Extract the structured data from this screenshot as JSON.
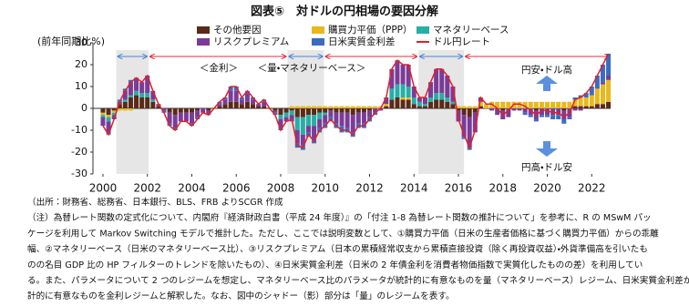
{
  "chart_data": {
    "type": "stacked-bar-line",
    "title": "図表⑤　対ドルの円相場の要因分解",
    "y_label": "(前年同期比%)",
    "xlim": [
      1999.55,
      2022.85
    ],
    "xticks": [
      2000,
      2002,
      2004,
      2006,
      2008,
      2010,
      2012,
      2014,
      2016,
      2018,
      2020,
      2022
    ],
    "ylim": [
      -30,
      30
    ],
    "yticks": [
      -30,
      -20,
      -10,
      0,
      10,
      20,
      30
    ],
    "shaded_periods": [
      [
        2000.6,
        2002.05
      ],
      [
        2008.3,
        2009.95
      ],
      [
        2014.2,
        2016.25
      ]
    ],
    "rate_periods": [
      [
        2002.05,
        2008.3
      ],
      [
        2009.95,
        2014.2
      ],
      [
        2016.25,
        2022.85
      ]
    ],
    "regime_labels": [
      "＜金利＞",
      "＜量・マネタリーベース＞"
    ],
    "direction_labels": [
      "円安・ドル高",
      "円高・ドル安"
    ],
    "x": [
      2000,
      2000.25,
      2000.5,
      2000.75,
      2001,
      2001.25,
      2001.5,
      2001.75,
      2002,
      2002.25,
      2002.5,
      2002.75,
      2003,
      2003.25,
      2003.5,
      2003.75,
      2004,
      2004.25,
      2004.5,
      2004.75,
      2005,
      2005.25,
      2005.5,
      2005.75,
      2006,
      2006.25,
      2006.5,
      2006.75,
      2007,
      2007.25,
      2007.5,
      2007.75,
      2008,
      2008.25,
      2008.5,
      2008.75,
      2009,
      2009.25,
      2009.5,
      2009.75,
      2010,
      2010.25,
      2010.5,
      2010.75,
      2011,
      2011.25,
      2011.5,
      2011.75,
      2012,
      2012.25,
      2012.5,
      2012.75,
      2013,
      2013.25,
      2013.5,
      2013.75,
      2014,
      2014.25,
      2014.5,
      2014.75,
      2015,
      2015.25,
      2015.5,
      2015.75,
      2016,
      2016.25,
      2016.5,
      2016.75,
      2017,
      2017.25,
      2017.5,
      2017.75,
      2018,
      2018.25,
      2018.5,
      2018.75,
      2019,
      2019.25,
      2019.5,
      2019.75,
      2020,
      2020.25,
      2020.5,
      2020.75,
      2021,
      2021.25,
      2021.5,
      2021.75,
      2022,
      2022.25,
      2022.5,
      2022.75
    ],
    "series": [
      {
        "name": "その他要因",
        "color": "#5a2a18",
        "values": [
          -2,
          -3,
          -1,
          2,
          3,
          5,
          6,
          5,
          5,
          3,
          1,
          0,
          -2,
          -3,
          -2,
          -2,
          -2,
          -1,
          0,
          -1,
          0,
          1,
          2,
          3,
          3,
          2,
          3,
          2,
          1,
          1,
          0,
          -1,
          -3,
          -2,
          -1,
          -4,
          -4,
          -3,
          -3,
          -2,
          -2,
          -1,
          -2,
          -2,
          -2,
          -3,
          -2,
          -2,
          -1,
          0,
          0,
          1,
          4,
          5,
          4,
          4,
          2,
          1,
          1,
          3,
          4,
          4,
          3,
          2,
          -1,
          -3,
          -4,
          -2,
          1,
          0,
          0,
          0,
          -1,
          0,
          0,
          0,
          0,
          0,
          -1,
          0,
          0,
          0,
          0,
          -1,
          0,
          1,
          1,
          1,
          1,
          2,
          2,
          3
        ]
      },
      {
        "name": "購買力平価（PPP）",
        "color": "#e9b81c",
        "values": [
          -1,
          -1,
          -1,
          -1,
          -1,
          -1,
          0,
          0,
          0,
          0,
          0,
          0,
          0,
          0,
          0,
          0,
          0,
          0,
          0,
          0,
          0,
          0,
          0,
          0,
          0,
          0,
          0,
          0,
          0,
          0,
          0,
          0,
          0,
          0,
          1,
          1,
          1,
          1,
          1,
          1,
          1,
          1,
          1,
          1,
          1,
          1,
          1,
          1,
          1,
          1,
          1,
          1,
          0,
          0,
          1,
          1,
          0,
          0,
          0,
          0,
          0,
          0,
          0,
          0,
          1,
          1,
          1,
          1,
          2,
          2,
          3,
          3,
          3,
          3,
          3,
          3,
          3,
          3,
          3,
          3,
          3,
          3,
          3,
          3,
          3,
          3,
          4,
          4,
          5,
          7,
          9,
          10
        ]
      },
      {
        "name": "マネタリーベース",
        "color": "#27aea6",
        "values": [
          -1,
          -2,
          -1,
          0,
          1,
          1,
          2,
          2,
          2,
          1,
          0,
          0,
          0,
          0,
          0,
          0,
          0,
          0,
          0,
          0,
          0,
          0,
          0,
          0,
          0,
          0,
          0,
          0,
          0,
          0,
          0,
          0,
          -2,
          -2,
          -2,
          -6,
          -8,
          -5,
          -5,
          -3,
          -1,
          0,
          0,
          0,
          0,
          0,
          0,
          0,
          0,
          0,
          0,
          0,
          5,
          6,
          6,
          5,
          3,
          2,
          1,
          2,
          3,
          3,
          2,
          1,
          0,
          0,
          0,
          0,
          0,
          0,
          0,
          0,
          0,
          0,
          0,
          0,
          0,
          0,
          0,
          0,
          0,
          0,
          0,
          0,
          0,
          0,
          0,
          0,
          0,
          0,
          0,
          0
        ]
      },
      {
        "name": "リスクプレミアム",
        "color": "#7a3c96",
        "values": [
          -4,
          -5,
          -2,
          1,
          4,
          6,
          6,
          5,
          8,
          4,
          1,
          -1,
          -5,
          -6,
          -4,
          -4,
          -5,
          -3,
          -2,
          -2,
          0,
          1,
          2,
          5,
          5,
          2,
          4,
          2,
          1,
          2,
          0,
          -1,
          -4,
          -2,
          -2,
          -6,
          -5,
          -3,
          -6,
          -4,
          -4,
          -3,
          -5,
          -6,
          -7,
          -8,
          -5,
          -5,
          -3,
          -2,
          -1,
          3,
          9,
          11,
          9,
          10,
          5,
          2,
          3,
          7,
          11,
          11,
          10,
          7,
          -5,
          -10,
          -14,
          -9,
          2,
          0,
          -1,
          -3,
          -4,
          -4,
          -1,
          -1,
          -2,
          -3,
          -4,
          -3,
          -3,
          -3,
          -3,
          -4,
          -4,
          -1,
          -1,
          0,
          0,
          0,
          1,
          2
        ]
      },
      {
        "name": "日米実質金利差",
        "color": "#3b6cc0",
        "values": [
          0,
          -1,
          0,
          1,
          1,
          1,
          0,
          0,
          0,
          0,
          0,
          -1,
          -1,
          -1,
          0,
          0,
          -1,
          -1,
          0,
          0,
          0,
          1,
          1,
          2,
          2,
          1,
          1,
          1,
          0,
          1,
          0,
          -1,
          -1,
          0,
          -1,
          -2,
          -2,
          -2,
          -2,
          -2,
          -2,
          -2,
          -2,
          -3,
          -2,
          -2,
          -2,
          -2,
          -2,
          -1,
          0,
          0,
          0,
          0,
          0,
          0,
          0,
          0,
          0,
          0,
          0,
          0,
          0,
          0,
          0,
          -1,
          -1,
          0,
          0,
          0,
          0,
          0,
          0,
          0,
          0,
          0,
          -1,
          -1,
          -1,
          -1,
          -1,
          -2,
          -2,
          -2,
          -1,
          1,
          1,
          2,
          4,
          6,
          8,
          10
        ]
      }
    ],
    "line": {
      "name": "ドル円レート",
      "color": "#e0202c",
      "values": [
        -8,
        -12,
        -5,
        3,
        8,
        12,
        14,
        12,
        15,
        8,
        2,
        -2,
        -8,
        -10,
        -6,
        -6,
        -8,
        -5,
        -2,
        -3,
        0,
        3,
        5,
        10,
        10,
        5,
        8,
        5,
        2,
        4,
        0,
        -3,
        -10,
        -6,
        -5,
        -17,
        -18,
        -12,
        -15,
        -10,
        -8,
        -5,
        -8,
        -10,
        -10,
        -12,
        -8,
        -8,
        -5,
        -2,
        0,
        5,
        18,
        22,
        20,
        20,
        10,
        5,
        5,
        12,
        18,
        18,
        15,
        10,
        -5,
        -12,
        -18,
        -10,
        5,
        2,
        2,
        0,
        -3,
        -1,
        2,
        2,
        1,
        -1,
        -3,
        -1,
        -1,
        -2,
        -2,
        -4,
        -2,
        4,
        5,
        7,
        10,
        15,
        20,
        25
      ]
    }
  },
  "notes": [
    "（出所：財務省、総務省、日本銀行、BLS、FRB よりSCGR 作成",
    "（注）為替レート関数の定式化について、内閣府『経済財政白書（平成 24 年度）』の「付注 1-8 為替レート関数の推計について」を参考に、R の MSwM パッ",
    "ケージを利用して Markov Switching モデルで推計した。ただし、ここでは説明変数として、①購買力平価（日米の生産者価格に基づく購買力平価）からの乖離",
    "幅、②マネタリーベース（日米のマネタリーベース比）、③リスクプレミアム（日本の累積経常収支から累積直接投資（除く再投資収益）・外貨準備高を引いたも",
    "のの名目 GDP 比の HP フィルターのトレンドを除いたもの）、④日米実質金利差（日米の 2 年債金利を消費者物価指数で実質化したものの差）を利用してい",
    "る。また、パラメータについて 2 つのレジームを想定し、マネタリーベース比のパラメータが統計的に有意なものを量（マネタリーベース）レジーム、日米実質金利差が統",
    "計的に有意なものを金利レジームと解釈した。なお、図中のシャドー（影）部分は「量」のレジームを表す。"
  ]
}
